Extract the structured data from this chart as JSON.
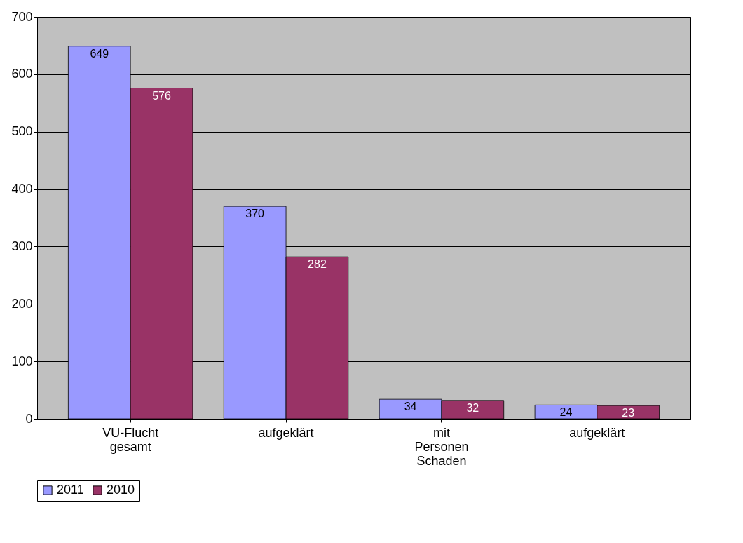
{
  "chart_data": {
    "type": "bar",
    "categories": [
      "VU-Flucht gesamt",
      "aufgeklärt",
      "mit Personen Schaden",
      "aufgeklärt"
    ],
    "series": [
      {
        "name": "2011",
        "color": "#9999ff",
        "values": [
          649,
          370,
          34,
          24
        ]
      },
      {
        "name": "2010",
        "color": "#993366",
        "values": [
          576,
          282,
          32,
          23
        ]
      }
    ],
    "ylim": [
      0,
      700
    ],
    "yticks": [
      0,
      100,
      200,
      300,
      400,
      500,
      600,
      700
    ],
    "grid": "y",
    "legend": "bottom",
    "data_labels": true
  }
}
